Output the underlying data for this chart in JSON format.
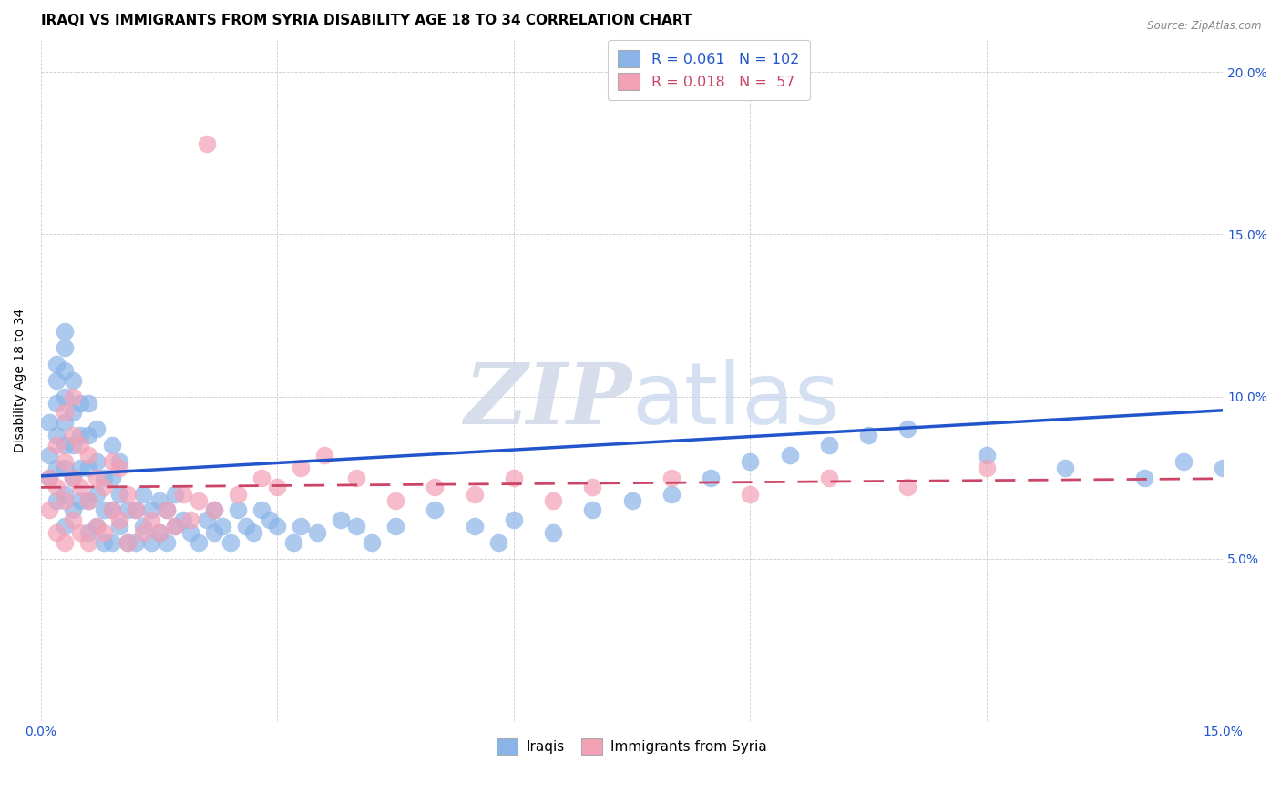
{
  "title": "IRAQI VS IMMIGRANTS FROM SYRIA DISABILITY AGE 18 TO 34 CORRELATION CHART",
  "source": "Source: ZipAtlas.com",
  "ylabel": "Disability Age 18 to 34",
  "xlim": [
    0.0,
    0.15
  ],
  "ylim": [
    0.0,
    0.21
  ],
  "xtick_positions": [
    0.0,
    0.03,
    0.06,
    0.09,
    0.12,
    0.15
  ],
  "xtick_labels": [
    "0.0%",
    "",
    "",
    "",
    "",
    "15.0%"
  ],
  "ytick_positions": [
    0.0,
    0.05,
    0.1,
    0.15,
    0.2
  ],
  "ytick_labels": [
    "",
    "5.0%",
    "10.0%",
    "15.0%",
    "20.0%"
  ],
  "legend_label_iraqis": "Iraqis",
  "legend_label_syria": "Immigrants from Syria",
  "iraqis_color": "#8ab4e8",
  "syria_color": "#f4a0b5",
  "iraqis_line_color": "#2255cc",
  "syria_line_color": "#cc4466",
  "background_color": "#ffffff",
  "grid_color": "#cccccc",
  "watermark_zip": "ZIP",
  "watermark_atlas": "atlas",
  "title_fontsize": 11,
  "axis_label_fontsize": 10,
  "tick_fontsize": 10,
  "iraqis_line_slope": 0.135,
  "iraqis_line_intercept": 0.0755,
  "syria_line_slope": 0.018,
  "syria_line_intercept": 0.072,
  "iraqis_x": [
    0.001,
    0.001,
    0.001,
    0.002,
    0.002,
    0.002,
    0.002,
    0.002,
    0.002,
    0.003,
    0.003,
    0.003,
    0.003,
    0.003,
    0.003,
    0.003,
    0.003,
    0.003,
    0.004,
    0.004,
    0.004,
    0.004,
    0.004,
    0.005,
    0.005,
    0.005,
    0.005,
    0.006,
    0.006,
    0.006,
    0.006,
    0.006,
    0.007,
    0.007,
    0.007,
    0.007,
    0.008,
    0.008,
    0.008,
    0.009,
    0.009,
    0.009,
    0.009,
    0.01,
    0.01,
    0.01,
    0.011,
    0.011,
    0.012,
    0.012,
    0.013,
    0.013,
    0.014,
    0.014,
    0.015,
    0.015,
    0.016,
    0.016,
    0.017,
    0.017,
    0.018,
    0.019,
    0.02,
    0.021,
    0.022,
    0.022,
    0.023,
    0.024,
    0.025,
    0.026,
    0.027,
    0.028,
    0.029,
    0.03,
    0.032,
    0.033,
    0.035,
    0.038,
    0.04,
    0.042,
    0.045,
    0.05,
    0.055,
    0.058,
    0.06,
    0.065,
    0.07,
    0.075,
    0.08,
    0.085,
    0.09,
    0.095,
    0.1,
    0.105,
    0.11,
    0.12,
    0.13,
    0.14,
    0.145,
    0.15
  ],
  "iraqis_y": [
    0.075,
    0.082,
    0.092,
    0.068,
    0.078,
    0.088,
    0.098,
    0.105,
    0.11,
    0.06,
    0.07,
    0.078,
    0.085,
    0.092,
    0.1,
    0.108,
    0.115,
    0.12,
    0.065,
    0.075,
    0.085,
    0.095,
    0.105,
    0.068,
    0.078,
    0.088,
    0.098,
    0.058,
    0.068,
    0.078,
    0.088,
    0.098,
    0.06,
    0.07,
    0.08,
    0.09,
    0.055,
    0.065,
    0.075,
    0.055,
    0.065,
    0.075,
    0.085,
    0.06,
    0.07,
    0.08,
    0.055,
    0.065,
    0.055,
    0.065,
    0.06,
    0.07,
    0.055,
    0.065,
    0.058,
    0.068,
    0.055,
    0.065,
    0.06,
    0.07,
    0.062,
    0.058,
    0.055,
    0.062,
    0.058,
    0.065,
    0.06,
    0.055,
    0.065,
    0.06,
    0.058,
    0.065,
    0.062,
    0.06,
    0.055,
    0.06,
    0.058,
    0.062,
    0.06,
    0.055,
    0.06,
    0.065,
    0.06,
    0.055,
    0.062,
    0.058,
    0.065,
    0.068,
    0.07,
    0.075,
    0.08,
    0.082,
    0.085,
    0.088,
    0.09,
    0.082,
    0.078,
    0.075,
    0.08,
    0.078
  ],
  "syria_x": [
    0.001,
    0.001,
    0.002,
    0.002,
    0.002,
    0.003,
    0.003,
    0.003,
    0.003,
    0.004,
    0.004,
    0.004,
    0.004,
    0.005,
    0.005,
    0.005,
    0.006,
    0.006,
    0.006,
    0.007,
    0.007,
    0.008,
    0.008,
    0.009,
    0.009,
    0.01,
    0.01,
    0.011,
    0.011,
    0.012,
    0.013,
    0.014,
    0.015,
    0.016,
    0.017,
    0.018,
    0.019,
    0.02,
    0.021,
    0.022,
    0.025,
    0.028,
    0.03,
    0.033,
    0.036,
    0.04,
    0.045,
    0.05,
    0.055,
    0.06,
    0.065,
    0.07,
    0.08,
    0.09,
    0.1,
    0.11,
    0.12
  ],
  "syria_y": [
    0.065,
    0.075,
    0.058,
    0.072,
    0.085,
    0.055,
    0.068,
    0.08,
    0.095,
    0.062,
    0.075,
    0.088,
    0.1,
    0.058,
    0.072,
    0.085,
    0.055,
    0.068,
    0.082,
    0.06,
    0.075,
    0.058,
    0.072,
    0.065,
    0.08,
    0.062,
    0.078,
    0.055,
    0.07,
    0.065,
    0.058,
    0.062,
    0.058,
    0.065,
    0.06,
    0.07,
    0.062,
    0.068,
    0.178,
    0.065,
    0.07,
    0.075,
    0.072,
    0.078,
    0.082,
    0.075,
    0.068,
    0.072,
    0.07,
    0.075,
    0.068,
    0.072,
    0.075,
    0.07,
    0.075,
    0.072,
    0.078
  ]
}
